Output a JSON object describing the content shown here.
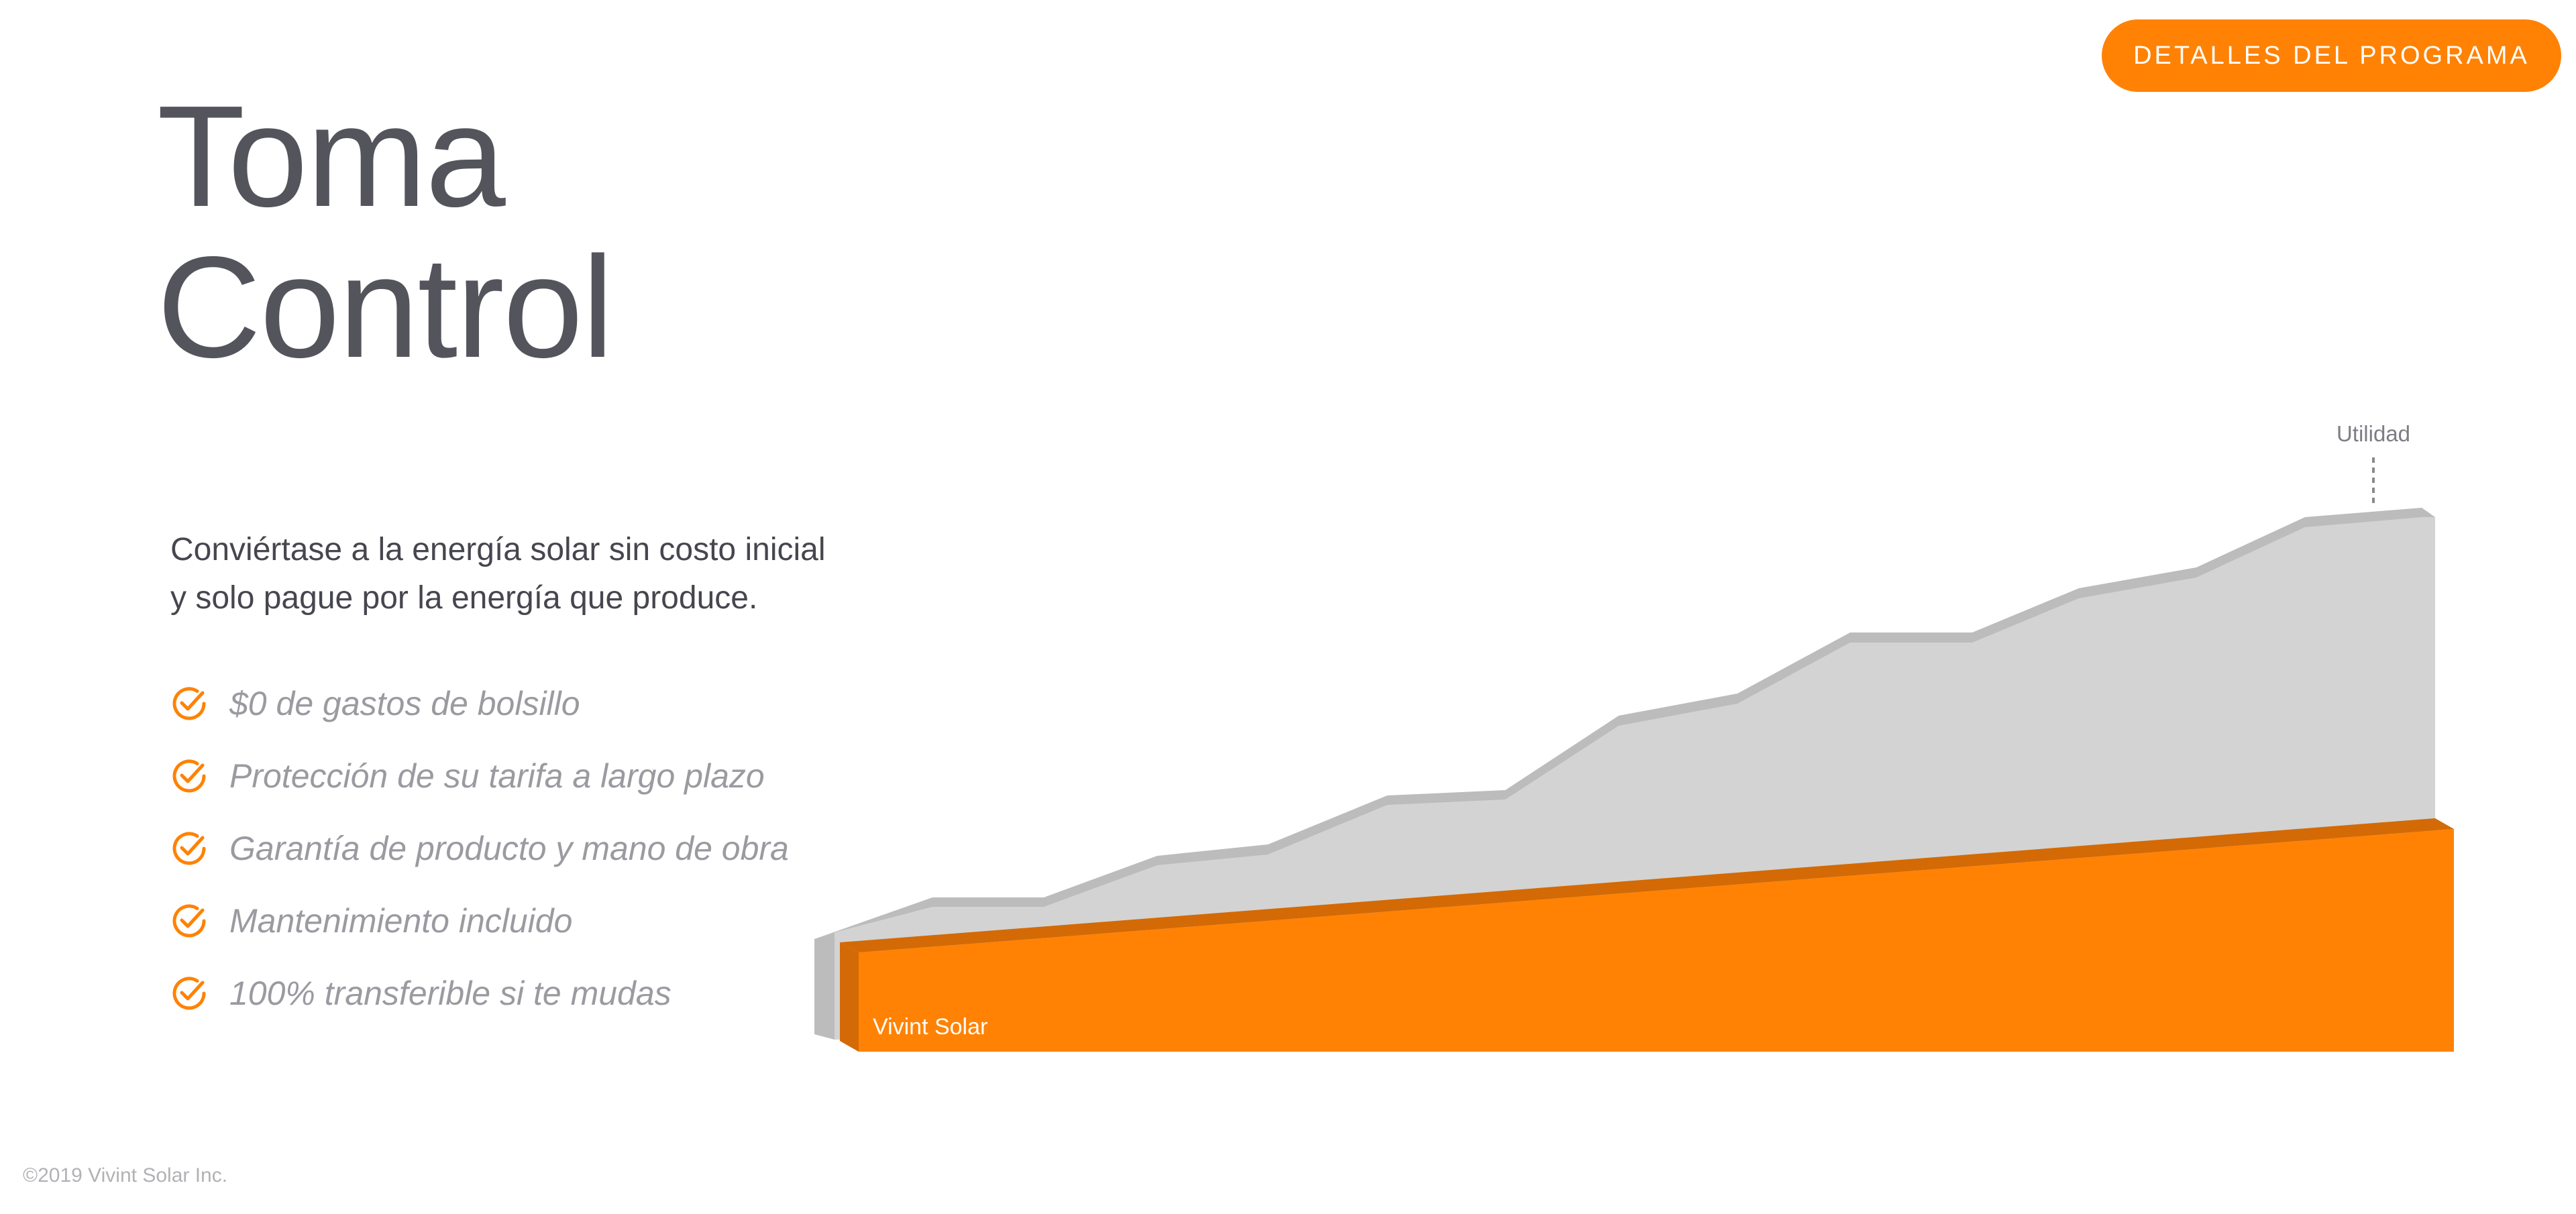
{
  "header": {
    "cta_label": "DETALLES DEL PROGRAMA"
  },
  "hero": {
    "title_line1": "Toma",
    "title_line2": "Control"
  },
  "intro": {
    "line1": "Conviértase a la energía solar sin costo inicial",
    "line2": "y solo pague por la energía que produce."
  },
  "benefits": [
    {
      "icon": "check-circle-icon",
      "label": "$0 de gastos de bolsillo"
    },
    {
      "icon": "check-circle-icon",
      "label": "Protección de su tarifa a largo plazo"
    },
    {
      "icon": "check-circle-icon",
      "label": "Garantía de producto y mano de obra"
    },
    {
      "icon": "check-circle-icon",
      "label": "Mantenimiento incluido"
    },
    {
      "icon": "check-circle-icon",
      "label": "100% transferible si te mudas"
    }
  ],
  "chart": {
    "utility_label": "Utilidad",
    "solar_label": "Vivint Solar"
  },
  "colors": {
    "brand_orange": "#ff8204",
    "brand_orange_dark": "#d36a06",
    "utility_gray": "#d3d3d3",
    "utility_gray_dark": "#bcbcbc",
    "title_text": "#54545c",
    "muted_text": "#9a9aa0"
  },
  "footer": {
    "copyright": "©2019 Vivint Solar Inc."
  }
}
